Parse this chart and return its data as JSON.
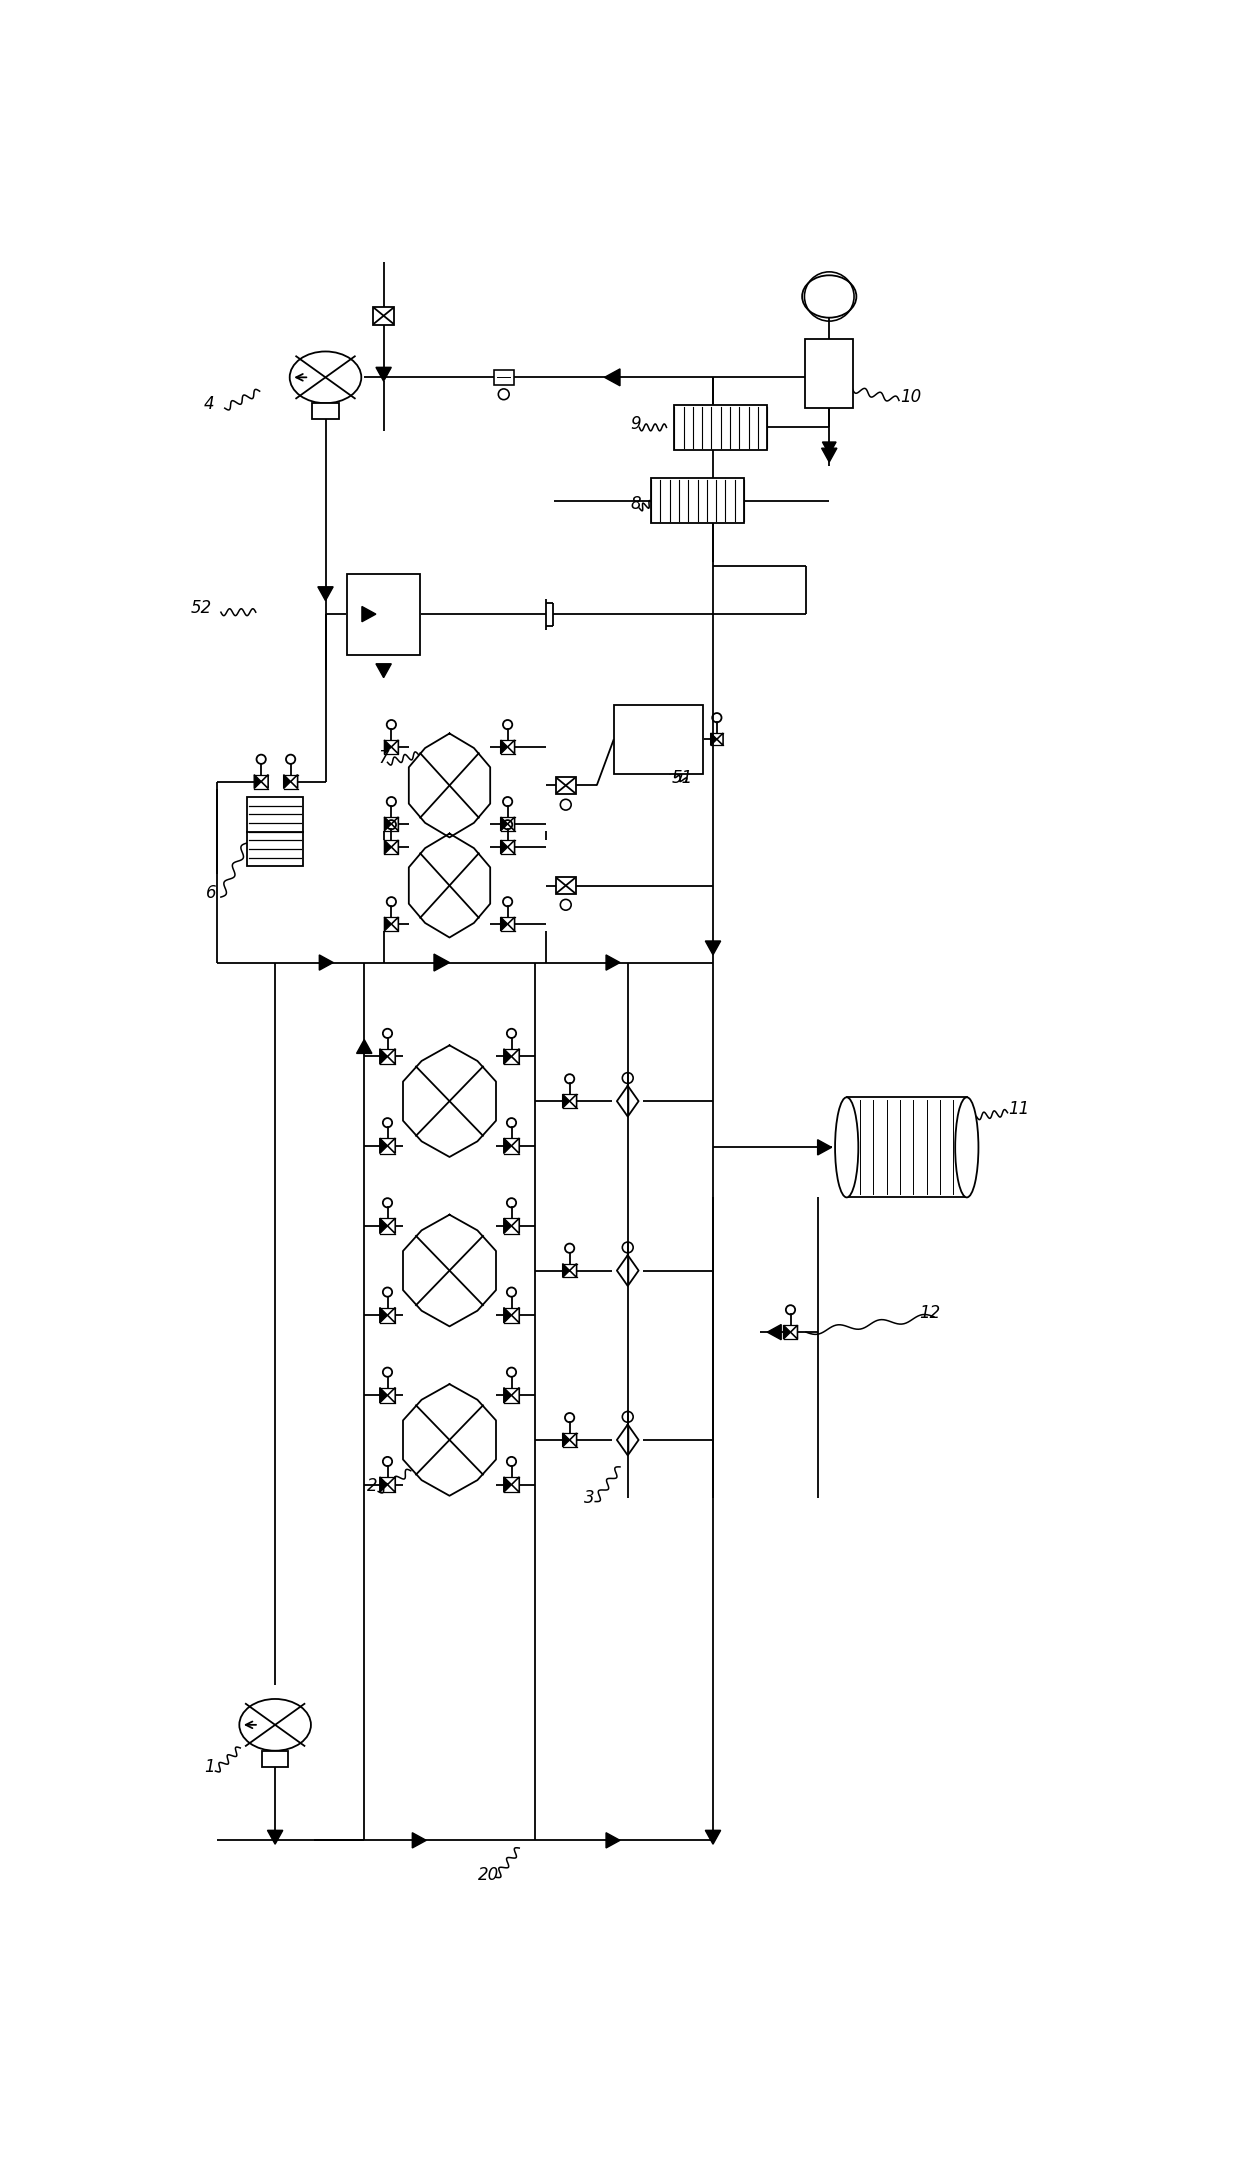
{
  "bg_color": "#ffffff",
  "lw": 1.3,
  "figsize": [
    12.4,
    21.82
  ],
  "dpi": 100,
  "label_fs": 12
}
